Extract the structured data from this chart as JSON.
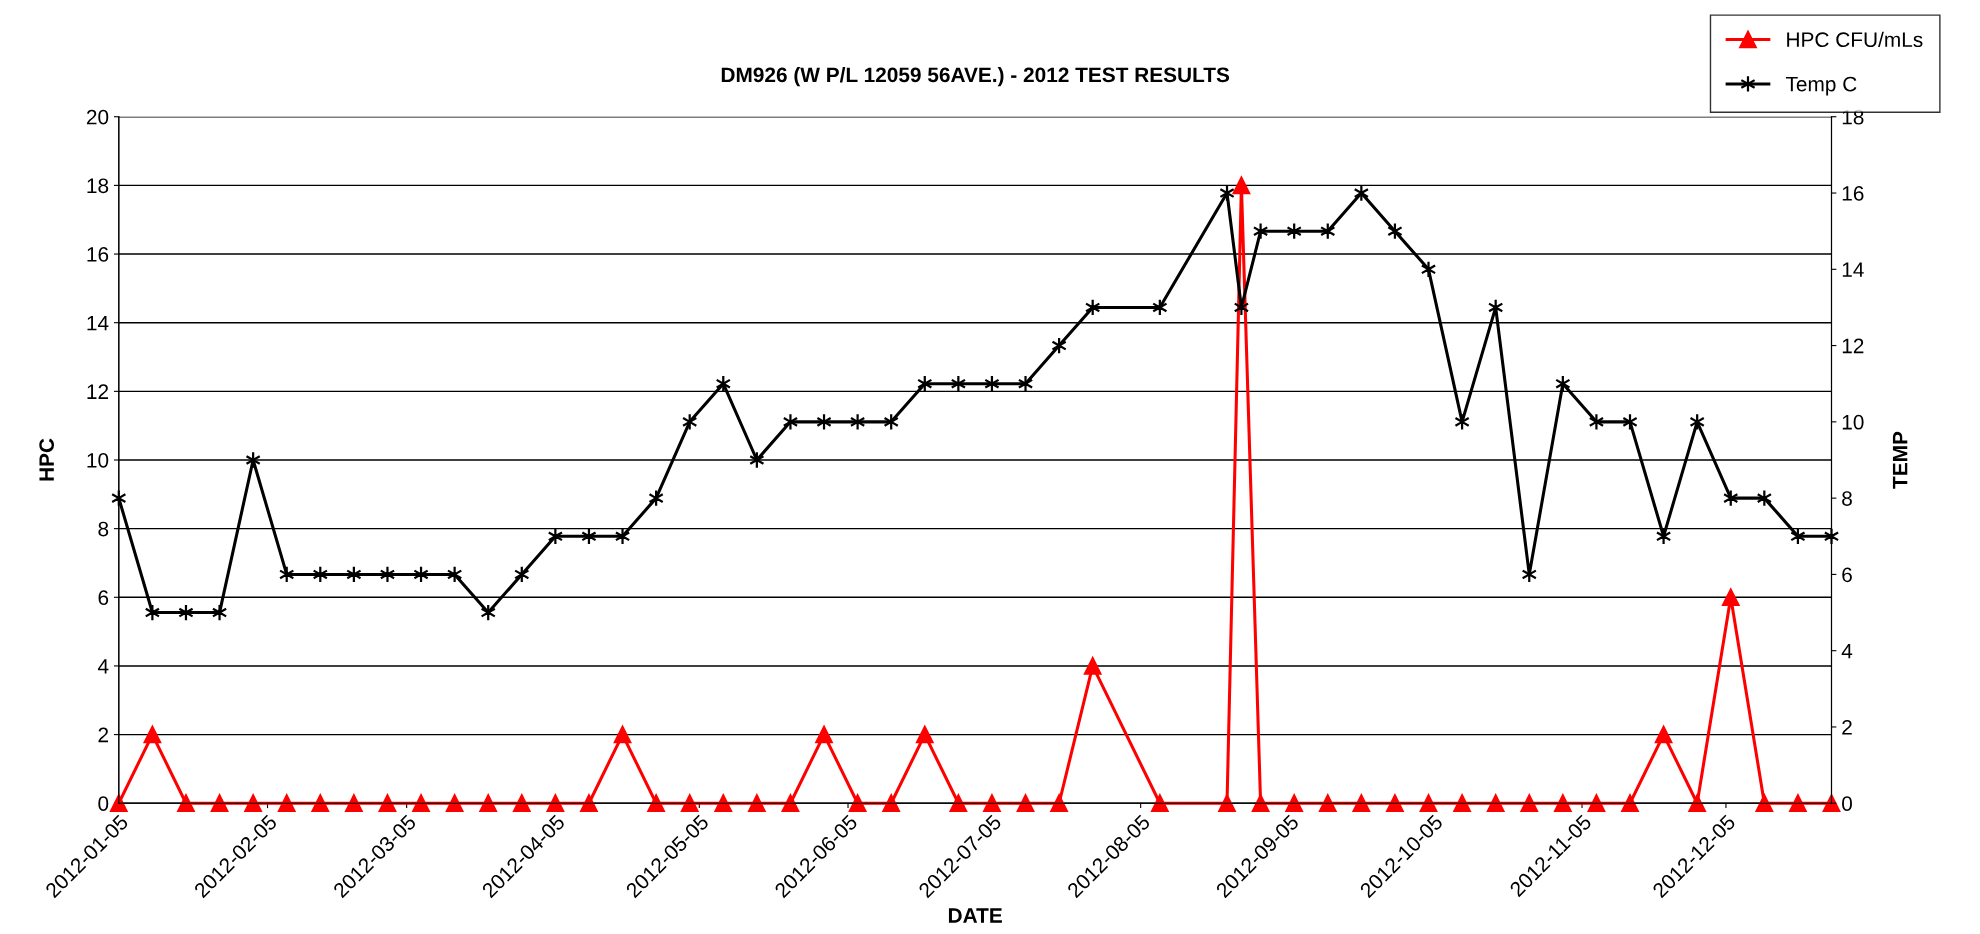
{
  "chart_data": {
    "type": "line",
    "title": "DM926 (W P/L 12059 56AVE.) - 2012 TEST RESULTS",
    "xlabel": "DATE",
    "ylabel": "HPC",
    "y2label": "TEMP",
    "x": [
      "2012-01-05",
      "2012-01-12",
      "2012-01-19",
      "2012-01-26",
      "2012-02-02",
      "2012-02-09",
      "2012-02-16",
      "2012-02-23",
      "2012-03-01",
      "2012-03-08",
      "2012-03-15",
      "2012-03-22",
      "2012-03-29",
      "2012-04-05",
      "2012-04-12",
      "2012-04-19",
      "2012-04-26",
      "2012-05-03",
      "2012-05-10",
      "2012-05-17",
      "2012-05-24",
      "2012-05-31",
      "2012-06-07",
      "2012-06-14",
      "2012-06-21",
      "2012-06-28",
      "2012-07-05",
      "2012-07-12",
      "2012-07-19",
      "2012-07-26",
      "2012-08-09",
      "2012-08-23",
      "2012-08-26",
      "2012-08-30",
      "2012-09-06",
      "2012-09-13",
      "2012-09-20",
      "2012-09-27",
      "2012-10-04",
      "2012-10-11",
      "2012-10-18",
      "2012-10-25",
      "2012-11-01",
      "2012-11-08",
      "2012-11-15",
      "2012-11-22",
      "2012-11-29",
      "2012-12-06",
      "2012-12-13",
      "2012-12-20",
      "2012-12-27"
    ],
    "series": [
      {
        "name": "HPC CFU/mLs",
        "color": "#ff0000",
        "marker": "triangle",
        "values": [
          0,
          2,
          0,
          0,
          0,
          0,
          0,
          0,
          0,
          0,
          0,
          0,
          0,
          0,
          0,
          2,
          0,
          0,
          0,
          0,
          0,
          2,
          0,
          0,
          2,
          0,
          0,
          0,
          0,
          4,
          0,
          0,
          18,
          0,
          0,
          0,
          0,
          0,
          0,
          0,
          0,
          0,
          0,
          0,
          0,
          2,
          0,
          6,
          0,
          0,
          0
        ]
      },
      {
        "name": "Temp C",
        "color": "#000000",
        "marker": "cross",
        "axis": "y2",
        "values": [
          8,
          5,
          5,
          5,
          9,
          6,
          6,
          6,
          6,
          6,
          6,
          5,
          6,
          7,
          7,
          7,
          8,
          10,
          11,
          9,
          10,
          10,
          10,
          10,
          11,
          11,
          11,
          11,
          12,
          13,
          13,
          16,
          13,
          15,
          15,
          15,
          16,
          15,
          14,
          10,
          13,
          6,
          11,
          10,
          10,
          7,
          10,
          8,
          8,
          7,
          7
        ]
      }
    ],
    "xlim": [
      "2012-01-05",
      "2012-12-27"
    ],
    "xticks": [
      "2012-01-05",
      "2012-02-05",
      "2012-03-05",
      "2012-04-05",
      "2012-05-05",
      "2012-06-05",
      "2012-07-05",
      "2012-08-05",
      "2012-09-05",
      "2012-10-05",
      "2012-11-05",
      "2012-12-05"
    ],
    "ylim": [
      0,
      20
    ],
    "yticks": [
      0,
      2,
      4,
      6,
      8,
      10,
      12,
      14,
      16,
      18,
      20
    ],
    "y2lim": [
      0,
      18
    ],
    "y2ticks": [
      0,
      2,
      4,
      6,
      8,
      10,
      12,
      14,
      16,
      18
    ],
    "grid": "y",
    "legend": "top right",
    "line_style": "solid"
  }
}
